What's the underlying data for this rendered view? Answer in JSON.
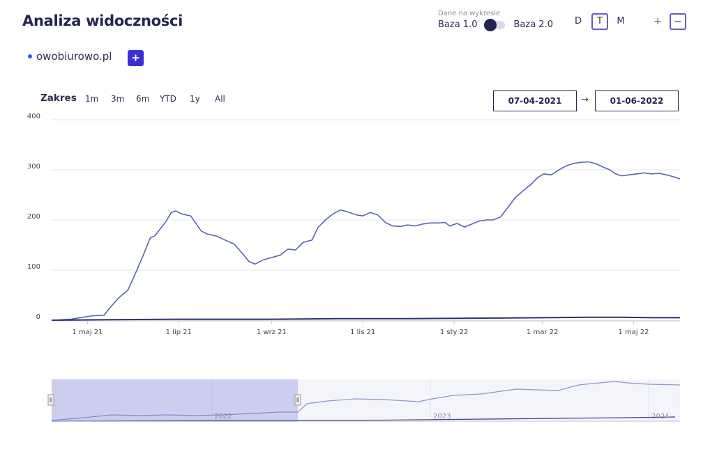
{
  "header": {
    "title": "Analiza widoczności",
    "toggle_caption": "Dane na wykresie",
    "toggle_left": "Baza 1.0",
    "toggle_right": "Baza 2.0",
    "periods": [
      "D",
      "T",
      "M"
    ],
    "active_period": "T",
    "zoom_in": "+",
    "zoom_out": "−"
  },
  "domain": {
    "name": "owobiurowo.pl",
    "add_label": "+",
    "color": "#3a55d8"
  },
  "range": {
    "label": "Zakres",
    "buttons": [
      "1m",
      "3m",
      "6m",
      "YTD",
      "1y",
      "All"
    ],
    "from": "07-04-2021",
    "arrow": "→",
    "to": "01-06-2022"
  },
  "chart_data": {
    "type": "line",
    "x_start": "2021-04-07",
    "x_end": "2022-06-01",
    "ylim": [
      0,
      400
    ],
    "yticks": [
      0,
      100,
      200,
      300,
      400
    ],
    "xticks": [
      {
        "date": "2021-05-01",
        "label": "1 maj 21"
      },
      {
        "date": "2021-07-01",
        "label": "1 lip 21"
      },
      {
        "date": "2021-09-01",
        "label": "1 wrz 21"
      },
      {
        "date": "2021-11-01",
        "label": "1 lis 21"
      },
      {
        "date": "2022-01-01",
        "label": "1 sty 22"
      },
      {
        "date": "2022-03-01",
        "label": "1 mar 22"
      },
      {
        "date": "2022-05-01",
        "label": "1 maj 22"
      }
    ],
    "series": [
      {
        "color": "#5566a8",
        "points": [
          [
            "2021-04-07",
            0
          ],
          [
            "2021-04-20",
            2
          ],
          [
            "2021-04-28",
            6
          ],
          [
            "2021-05-05",
            9
          ],
          [
            "2021-05-12",
            10
          ],
          [
            "2021-05-16",
            25
          ],
          [
            "2021-05-22",
            45
          ],
          [
            "2021-05-28",
            60
          ],
          [
            "2021-06-03",
            100
          ],
          [
            "2021-06-08",
            135
          ],
          [
            "2021-06-12",
            165
          ],
          [
            "2021-06-15",
            168
          ],
          [
            "2021-06-18",
            180
          ],
          [
            "2021-06-22",
            195
          ],
          [
            "2021-06-26",
            215
          ],
          [
            "2021-06-29",
            218
          ],
          [
            "2021-07-03",
            212
          ],
          [
            "2021-07-09",
            208
          ],
          [
            "2021-07-12",
            195
          ],
          [
            "2021-07-16",
            178
          ],
          [
            "2021-07-20",
            172
          ],
          [
            "2021-07-26",
            168
          ],
          [
            "2021-08-01",
            160
          ],
          [
            "2021-08-07",
            152
          ],
          [
            "2021-08-12",
            135
          ],
          [
            "2021-08-17",
            117
          ],
          [
            "2021-08-21",
            112
          ],
          [
            "2021-08-26",
            120
          ],
          [
            "2021-09-01",
            125
          ],
          [
            "2021-09-07",
            130
          ],
          [
            "2021-09-12",
            142
          ],
          [
            "2021-09-17",
            140
          ],
          [
            "2021-09-22",
            155
          ],
          [
            "2021-09-28",
            160
          ],
          [
            "2021-10-02",
            185
          ],
          [
            "2021-10-07",
            200
          ],
          [
            "2021-10-12",
            212
          ],
          [
            "2021-10-17",
            220
          ],
          [
            "2021-10-22",
            216
          ],
          [
            "2021-10-28",
            210
          ],
          [
            "2021-11-01",
            208
          ],
          [
            "2021-11-06",
            215
          ],
          [
            "2021-11-11",
            210
          ],
          [
            "2021-11-16",
            195
          ],
          [
            "2021-11-21",
            188
          ],
          [
            "2021-11-26",
            187
          ],
          [
            "2021-12-01",
            190
          ],
          [
            "2021-12-06",
            188
          ],
          [
            "2021-12-11",
            192
          ],
          [
            "2021-12-16",
            194
          ],
          [
            "2021-12-21",
            194
          ],
          [
            "2021-12-26",
            195
          ],
          [
            "2021-12-29",
            188
          ],
          [
            "2022-01-03",
            193
          ],
          [
            "2022-01-08",
            186
          ],
          [
            "2022-01-13",
            192
          ],
          [
            "2022-01-18",
            198
          ],
          [
            "2022-01-23",
            200
          ],
          [
            "2022-01-27",
            200
          ],
          [
            "2022-02-01",
            206
          ],
          [
            "2022-02-06",
            225
          ],
          [
            "2022-02-11",
            245
          ],
          [
            "2022-02-16",
            258
          ],
          [
            "2022-02-21",
            270
          ],
          [
            "2022-02-26",
            285
          ],
          [
            "2022-03-02",
            292
          ],
          [
            "2022-03-07",
            290
          ],
          [
            "2022-03-12",
            300
          ],
          [
            "2022-03-17",
            308
          ],
          [
            "2022-03-22",
            313
          ],
          [
            "2022-03-27",
            315
          ],
          [
            "2022-04-01",
            316
          ],
          [
            "2022-04-06",
            312
          ],
          [
            "2022-04-11",
            305
          ],
          [
            "2022-04-15",
            300
          ],
          [
            "2022-04-19",
            292
          ],
          [
            "2022-04-23",
            288
          ],
          [
            "2022-04-28",
            290
          ],
          [
            "2022-05-03",
            292
          ],
          [
            "2022-05-08",
            294
          ],
          [
            "2022-05-13",
            292
          ],
          [
            "2022-05-18",
            293
          ],
          [
            "2022-05-23",
            290
          ],
          [
            "2022-05-28",
            286
          ],
          [
            "2022-06-01",
            282
          ]
        ]
      },
      {
        "color": "#2b3470",
        "points": [
          [
            "2021-04-07",
            0
          ],
          [
            "2021-05-15",
            1
          ],
          [
            "2021-07-01",
            2
          ],
          [
            "2021-09-01",
            2
          ],
          [
            "2021-10-15",
            3
          ],
          [
            "2021-12-01",
            3
          ],
          [
            "2022-01-15",
            4
          ],
          [
            "2022-03-01",
            5
          ],
          [
            "2022-04-01",
            6
          ],
          [
            "2022-04-20",
            6
          ],
          [
            "2022-05-15",
            5
          ],
          [
            "2022-06-01",
            5
          ]
        ]
      }
    ]
  },
  "navigator": {
    "labels": [
      "2022",
      "2023",
      "2024"
    ]
  }
}
